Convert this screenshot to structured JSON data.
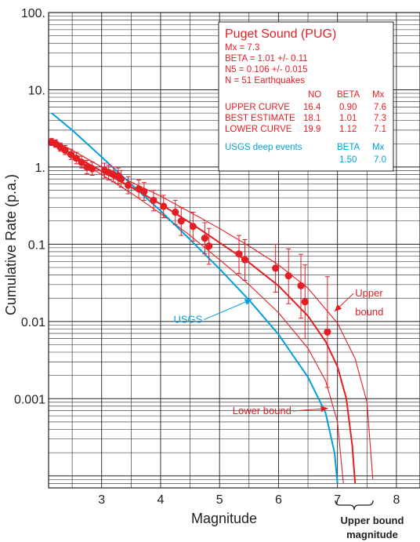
{
  "chart_data": {
    "type": "scatter",
    "xlabel": "Magnitude",
    "ylabel": "Cumulative Rate (p.a.)",
    "xlim": [
      2.1,
      8.4
    ],
    "ylim": [
      7e-05,
      100
    ],
    "y_scale": "log",
    "grid": true,
    "x_tick_labels": [
      "3",
      "4",
      "5",
      "6",
      "7",
      "8"
    ],
    "y_tick_labels": [
      "100.",
      "10.",
      "1.",
      "0.1",
      "0.01",
      "0.001"
    ],
    "colors": {
      "red": "#e31e24",
      "blue": "#00a0dc",
      "ink": "#231f20",
      "grid": "#231f20"
    },
    "observed": {
      "color": "#e31e24",
      "points": [
        {
          "x": 2.15,
          "y": 2.1,
          "lo": 1.9,
          "hi": 2.35
        },
        {
          "x": 2.22,
          "y": 2.0,
          "lo": 1.8,
          "hi": 2.25
        },
        {
          "x": 2.3,
          "y": 1.8,
          "lo": 1.6,
          "hi": 2.05
        },
        {
          "x": 2.38,
          "y": 1.65,
          "lo": 1.45,
          "hi": 1.9
        },
        {
          "x": 2.48,
          "y": 1.45,
          "lo": 1.25,
          "hi": 1.7
        },
        {
          "x": 2.57,
          "y": 1.3,
          "lo": 1.1,
          "hi": 1.55
        },
        {
          "x": 2.66,
          "y": 1.15,
          "lo": 0.97,
          "hi": 1.38
        },
        {
          "x": 2.75,
          "y": 1.0,
          "lo": 0.82,
          "hi": 1.22
        },
        {
          "x": 2.84,
          "y": 0.95,
          "lo": 0.78,
          "hi": 1.16
        },
        {
          "x": 3.05,
          "y": 0.9,
          "lo": 0.72,
          "hi": 1.12
        },
        {
          "x": 3.12,
          "y": 0.85,
          "lo": 0.68,
          "hi": 1.06
        },
        {
          "x": 3.2,
          "y": 0.8,
          "lo": 0.64,
          "hi": 1.0
        },
        {
          "x": 3.28,
          "y": 0.77,
          "lo": 0.61,
          "hi": 0.97
        },
        {
          "x": 3.33,
          "y": 0.7,
          "lo": 0.55,
          "hi": 0.9
        },
        {
          "x": 3.45,
          "y": 0.58,
          "lo": 0.45,
          "hi": 0.75
        },
        {
          "x": 3.63,
          "y": 0.52,
          "lo": 0.4,
          "hi": 0.68
        },
        {
          "x": 3.72,
          "y": 0.48,
          "lo": 0.37,
          "hi": 0.63
        },
        {
          "x": 3.88,
          "y": 0.37,
          "lo": 0.27,
          "hi": 0.5
        },
        {
          "x": 4.05,
          "y": 0.31,
          "lo": 0.22,
          "hi": 0.43
        },
        {
          "x": 4.25,
          "y": 0.26,
          "lo": 0.18,
          "hi": 0.37
        },
        {
          "x": 4.35,
          "y": 0.2,
          "lo": 0.13,
          "hi": 0.3
        },
        {
          "x": 4.55,
          "y": 0.17,
          "lo": 0.11,
          "hi": 0.26
        },
        {
          "x": 4.75,
          "y": 0.12,
          "lo": 0.075,
          "hi": 0.19
        },
        {
          "x": 4.82,
          "y": 0.095,
          "lo": 0.055,
          "hi": 0.16
        },
        {
          "x": 5.33,
          "y": 0.075,
          "lo": 0.042,
          "hi": 0.13
        },
        {
          "x": 5.43,
          "y": 0.063,
          "lo": 0.034,
          "hi": 0.115
        },
        {
          "x": 5.95,
          "y": 0.049,
          "lo": 0.024,
          "hi": 0.1
        },
        {
          "x": 6.17,
          "y": 0.039,
          "lo": 0.017,
          "hi": 0.087
        },
        {
          "x": 6.38,
          "y": 0.029,
          "lo": 0.011,
          "hi": 0.074
        },
        {
          "x": 6.45,
          "y": 0.018,
          "lo": 0.006,
          "hi": 0.054
        },
        {
          "x": 6.83,
          "y": 0.0073,
          "lo": 0.0014,
          "hi": 0.038
        }
      ]
    },
    "curves": [
      {
        "name": "BEST ESTIMATE",
        "color": "#e31e24",
        "width": 2.0,
        "x": [
          2.15,
          2.5,
          3.0,
          3.5,
          4.0,
          4.5,
          5.0,
          5.5,
          6.0,
          6.5,
          6.8,
          7.0,
          7.15,
          7.25,
          7.3
        ],
        "y": [
          2.1,
          1.45,
          0.88,
          0.55,
          0.33,
          0.19,
          0.105,
          0.058,
          0.029,
          0.0118,
          0.0055,
          0.0026,
          0.001,
          0.00025,
          8e-05
        ]
      },
      {
        "name": "UPPER CURVE",
        "color": "#e31e24",
        "width": 1.1,
        "x": [
          2.15,
          2.5,
          3.0,
          3.5,
          4.0,
          4.5,
          5.0,
          5.5,
          6.0,
          6.5,
          7.0,
          7.3,
          7.5,
          7.6
        ],
        "y": [
          2.3,
          1.65,
          1.0,
          0.64,
          0.42,
          0.26,
          0.16,
          0.095,
          0.054,
          0.027,
          0.0095,
          0.0033,
          0.0009,
          9e-05
        ]
      },
      {
        "name": "LOWER CURVE",
        "color": "#e31e24",
        "width": 1.1,
        "x": [
          2.15,
          2.5,
          3.0,
          3.5,
          4.0,
          4.5,
          5.0,
          5.5,
          6.0,
          6.5,
          6.8,
          7.0,
          7.1
        ],
        "y": [
          2.0,
          1.35,
          0.8,
          0.46,
          0.25,
          0.13,
          0.063,
          0.03,
          0.013,
          0.0045,
          0.0017,
          0.0005,
          8e-05
        ]
      },
      {
        "name": "USGS deep events",
        "color": "#00a0dc",
        "width": 2.0,
        "x": [
          2.15,
          2.5,
          3.0,
          3.5,
          4.0,
          4.5,
          5.0,
          5.5,
          6.0,
          6.5,
          6.8,
          6.95,
          7.0
        ],
        "y": [
          5.0,
          3.0,
          1.35,
          0.6,
          0.27,
          0.115,
          0.048,
          0.019,
          0.0068,
          0.0019,
          0.00065,
          0.0002,
          8e-05
        ]
      }
    ],
    "annotations": [
      {
        "text": "USGS",
        "color": "#00a0dc",
        "x": 4.22,
        "y": 0.0096,
        "arrow_to": [
          5.55,
          0.0194
        ]
      },
      {
        "text": "Lower bound",
        "color": "#e31e24",
        "x": 5.22,
        "y": 0.00063,
        "arrow_to": [
          6.84,
          0.00075
        ]
      },
      {
        "text": "Upper",
        "color": "#e31e24",
        "x": 7.3,
        "y": 0.021,
        "arrow_to": [
          6.95,
          0.0135
        ]
      },
      {
        "text": "bound",
        "color": "#e31e24",
        "x": 7.3,
        "y": 0.012,
        "arrow_to": null
      }
    ]
  },
  "legend": {
    "title": "Puget Sound (PUG)",
    "lines": [
      "Mx = 7.3",
      "BETA = 1.01  +/- 0.11",
      "N5 =    0.106 +/- 0.015",
      "N = 51 Earthquakes"
    ],
    "headers": [
      "NO",
      "BETA",
      "Mx"
    ],
    "rows": [
      {
        "label": "UPPER CURVE",
        "no": "16.4",
        "beta": "0.90",
        "mx": "7.6"
      },
      {
        "label": "BEST ESTIMATE",
        "no": "18.1",
        "beta": "1.01",
        "mx": "7.3"
      },
      {
        "label": "LOWER CURVE",
        "no": "19.9",
        "beta": "1.12",
        "mx": "7.1"
      }
    ],
    "usgs": {
      "label": "USGS deep events",
      "beta_header": "BETA",
      "mx_header": "Mx",
      "beta": "1.50",
      "mx": "7.0"
    }
  },
  "note": {
    "line1": "Upper bound",
    "line2": "magnitude"
  }
}
